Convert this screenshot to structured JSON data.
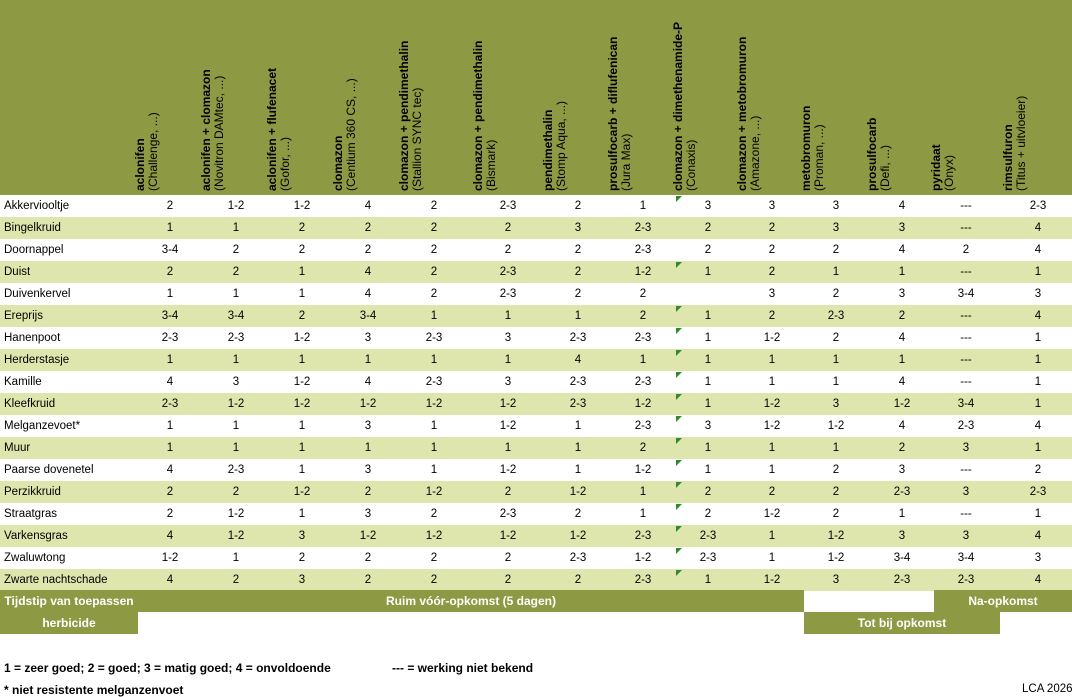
{
  "columns": [
    {
      "name": "aclonifen",
      "brand": "(Challenge, ...)"
    },
    {
      "name": "aclonifen + clomazon",
      "brand": "(Novitron DAMtec, ...)"
    },
    {
      "name": "aclonifen + flufenacet",
      "brand": "(Gofor, ...)"
    },
    {
      "name": "clomazon",
      "brand": "(Centium 360 CS, ...)"
    },
    {
      "name": "clomazon + pendimethalin",
      "brand": "(Stallion SYNC tec)"
    },
    {
      "name": "clomazon + pendimethalin",
      "brand": "(Bismark)"
    },
    {
      "name": "pendimethalin",
      "brand": "(Stomp Aqua, ...)"
    },
    {
      "name": "prosulfocarb + diflufenican",
      "brand": "(Jura Max)"
    },
    {
      "name": "clomazon + dimethenamide-P",
      "brand": "(Conaxis)"
    },
    {
      "name": "clomazon + metobromuron",
      "brand": "(Amazone, ...)"
    },
    {
      "name": "metobromuron",
      "brand": "(Proman, ...)"
    },
    {
      "name": "prosulfocarb",
      "brand": "(Defi, ...)"
    },
    {
      "name": "pyridaat",
      "brand": "(Onyx)"
    },
    {
      "name": "rimsulfuron",
      "brand": "(Titus + uitvloeier)"
    }
  ],
  "rows": [
    {
      "name": "Akkerviooltje",
      "values": [
        "2",
        "1-2",
        "1-2",
        "4",
        "2",
        "2-3",
        "2",
        "1",
        "3",
        "3",
        "3",
        "4",
        "---",
        "2-3"
      ]
    },
    {
      "name": "Bingelkruid",
      "values": [
        "1",
        "1",
        "2",
        "2",
        "2",
        "2",
        "3",
        "2-3",
        "2",
        "2",
        "3",
        "3",
        "---",
        "4"
      ]
    },
    {
      "name": "Doornappel",
      "values": [
        "3-4",
        "2",
        "2",
        "2",
        "2",
        "2",
        "2",
        "2-3",
        "2",
        "2",
        "2",
        "4",
        "2",
        "4"
      ]
    },
    {
      "name": "Duist",
      "values": [
        "2",
        "2",
        "1",
        "4",
        "2",
        "2-3",
        "2",
        "1-2",
        "1",
        "2",
        "1",
        "1",
        "---",
        "1"
      ]
    },
    {
      "name": "Duivenkervel",
      "values": [
        "1",
        "1",
        "1",
        "4",
        "2",
        "2-3",
        "2",
        "2",
        "",
        "3",
        "2",
        "3",
        "3-4",
        "3"
      ]
    },
    {
      "name": "Ereprijs",
      "values": [
        "3-4",
        "3-4",
        "2",
        "3-4",
        "1",
        "1",
        "1",
        "2",
        "1",
        "2",
        "2-3",
        "2",
        "---",
        "4"
      ]
    },
    {
      "name": "Hanenpoot",
      "values": [
        "2-3",
        "2-3",
        "1-2",
        "3",
        "2-3",
        "3",
        "2-3",
        "2-3",
        "1",
        "1-2",
        "2",
        "4",
        "---",
        "1"
      ]
    },
    {
      "name": "Herderstasje",
      "values": [
        "1",
        "1",
        "1",
        "1",
        "1",
        "1",
        "4",
        "1",
        "1",
        "1",
        "1",
        "1",
        "---",
        "1"
      ]
    },
    {
      "name": "Kamille",
      "values": [
        "4",
        "3",
        "1-2",
        "4",
        "2-3",
        "3",
        "2-3",
        "2-3",
        "1",
        "1",
        "1",
        "4",
        "---",
        "1"
      ]
    },
    {
      "name": "Kleefkruid",
      "values": [
        "2-3",
        "1-2",
        "1-2",
        "1-2",
        "1-2",
        "1-2",
        "2-3",
        "1-2",
        "1",
        "1-2",
        "3",
        "1-2",
        "3-4",
        "1"
      ]
    },
    {
      "name": "Melganzevoet*",
      "values": [
        "1",
        "1",
        "1",
        "3",
        "1",
        "1-2",
        "1",
        "2-3",
        "3",
        "1-2",
        "1-2",
        "4",
        "2-3",
        "4"
      ]
    },
    {
      "name": "Muur",
      "values": [
        "1",
        "1",
        "1",
        "1",
        "1",
        "1",
        "1",
        "2",
        "1",
        "1",
        "1",
        "2",
        "3",
        "1"
      ]
    },
    {
      "name": "Paarse dovenetel",
      "values": [
        "4",
        "2-3",
        "1",
        "3",
        "1",
        "1-2",
        "1",
        "1-2",
        "1",
        "1",
        "2",
        "3",
        "---",
        "2"
      ]
    },
    {
      "name": "Perzikkruid",
      "values": [
        "2",
        "2",
        "1-2",
        "2",
        "1-2",
        "2",
        "1-2",
        "1",
        "2",
        "2",
        "2",
        "2-3",
        "3",
        "2-3"
      ]
    },
    {
      "name": "Straatgras",
      "values": [
        "2",
        "1-2",
        "1",
        "3",
        "2",
        "2-3",
        "2",
        "1",
        "2",
        "1-2",
        "2",
        "1",
        "---",
        "1"
      ]
    },
    {
      "name": "Varkensgras",
      "values": [
        "4",
        "1-2",
        "3",
        "1-2",
        "1-2",
        "1-2",
        "1-2",
        "2-3",
        "2-3",
        "1",
        "1-2",
        "3",
        "3",
        "4"
      ]
    },
    {
      "name": "Zwaluwtong",
      "values": [
        "1-2",
        "1",
        "2",
        "2",
        "2",
        "2",
        "2-3",
        "1-2",
        "2-3",
        "1",
        "1-2",
        "3-4",
        "3-4",
        "3"
      ]
    },
    {
      "name": "Zwarte nachtschade",
      "values": [
        "4",
        "2",
        "3",
        "2",
        "2",
        "2",
        "2",
        "2-3",
        "1",
        "1-2",
        "3",
        "2-3",
        "2-3",
        "4"
      ]
    }
  ],
  "timing": {
    "label_line1": "Tijdstip van toepassen",
    "label_line2": "herbicide",
    "pre": "Ruim vóór-opkomst (5 dagen)",
    "post": "Na-opkomst",
    "until": "Tot bij opkomst"
  },
  "legend": {
    "scale": "1 = zeer goed; 2 = goed; 3 = matig goed; 4 = onvoldoende",
    "unknown": "--- = werking niet bekend"
  },
  "footnote": "* niet resistente melganzenvoet",
  "credit": "LCA 2026",
  "colors": {
    "header": "#8e9a43",
    "stripe": "#dfe6ad",
    "flag": "#2e8b2e"
  }
}
